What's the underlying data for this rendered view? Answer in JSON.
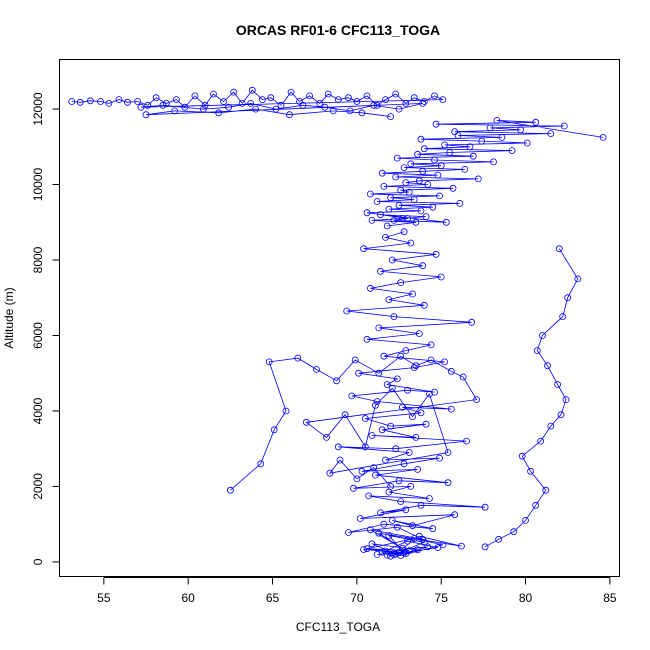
{
  "chart_data": {
    "type": "scatter",
    "title": "ORCAS RF01-6 CFC113_TOGA",
    "xlabel": "CFC113_TOGA",
    "ylabel": "Altitude (m)",
    "xlim": [
      52.4,
      85.6
    ],
    "ylim": [
      -400,
      13300
    ],
    "xticks": [
      55,
      60,
      65,
      70,
      75,
      80,
      85
    ],
    "yticks": [
      0,
      2000,
      4000,
      6000,
      8000,
      10000,
      12000
    ],
    "grid": false,
    "legend": "none",
    "color": "#0000ff",
    "marker": "open-circle",
    "connected": true,
    "series": [
      {
        "x": [
          71.2,
          72.5,
          71.8,
          73.1,
          70.6,
          72.9,
          74.2,
          71.5,
          72.0,
          73.6,
          70.9,
          72.3,
          74.8,
          73.0,
          71.7,
          72.6,
          75.1,
          73.4,
          70.4,
          72.8,
          71.9,
          74.0,
          72.2,
          73.7,
          76.2,
          71.3,
          72.7,
          70.8,
          73.9,
          72.4,
          69.5,
          71.6,
          74.5,
          72.1,
          73.3,
          75.8,
          70.2,
          72.9,
          71.4,
          73.8,
          77.6,
          72.6,
          70.7,
          74.3,
          71.9,
          73.2,
          69.8,
          72.5,
          75.4,
          71.1,
          73.6,
          70.3,
          72.8,
          74.9,
          71.7,
          73.1,
          68.9,
          72.3,
          76.5,
          70.9,
          73.5,
          71.5,
          74.1,
          72.0,
          70.5,
          73.8,
          72.7,
          75.6,
          71.2,
          69.7,
          73.0,
          74.6,
          71.8,
          72.4,
          70.1,
          73.4,
          75.2,
          71.6,
          72.9,
          74.4,
          70.6,
          73.7,
          71.3,
          76.8,
          72.2,
          69.4,
          74.0,
          71.9,
          73.3,
          70.8,
          72.6,
          75.0,
          71.4,
          73.9,
          72.1,
          74.7,
          70.4,
          73.2,
          71.7,
          72.8
        ],
        "y": [
          200,
          250,
          180,
          300,
          350,
          220,
          400,
          260,
          150,
          320,
          480,
          210,
          380,
          550,
          290,
          170,
          450,
          620,
          330,
          240,
          700,
          520,
          190,
          680,
          420,
          760,
          360,
          850,
          600,
          920,
          780,
          1000,
          880,
          1100,
          960,
          1250,
          1150,
          1380,
          1300,
          1500,
          1450,
          1600,
          1750,
          1680,
          1850,
          2000,
          1950,
          2150,
          2100,
          2300,
          2450,
          2400,
          2600,
          2750,
          2700,
          2900,
          3050,
          3000,
          3200,
          3350,
          3300,
          3500,
          3650,
          3600,
          3800,
          3950,
          4100,
          4050,
          4250,
          4400,
          4550,
          4500,
          4700,
          4850,
          5000,
          5150,
          5300,
          5450,
          5600,
          5750,
          5900,
          6050,
          6200,
          6350,
          6500,
          6650,
          6800,
          6950,
          7100,
          7250,
          7400,
          7550,
          7700,
          7850,
          8000,
          8150,
          8300,
          8450,
          8600,
          8750
        ]
      },
      {
        "x": [
          71.8,
          73.5,
          70.9,
          72.7,
          74.1,
          71.4,
          73.0,
          72.2,
          75.3,
          70.6,
          73.8,
          71.9,
          74.5,
          72.5,
          76.1,
          71.2,
          73.4,
          72.0,
          74.9,
          70.8,
          73.1,
          72.6,
          75.7,
          71.6,
          74.2,
          72.9,
          73.7,
          77.2,
          72.3,
          74.8,
          71.5,
          73.9,
          76.4,
          72.8,
          75.0,
          73.2,
          78.1,
          74.6,
          72.4,
          76.9,
          73.6,
          75.5,
          79.2,
          74.0,
          76.7,
          75.2,
          80.1,
          77.4,
          73.8,
          78.6,
          76.0,
          81.5,
          75.8,
          79.7,
          77.9,
          82.3,
          74.7,
          80.6,
          78.3,
          84.6
        ],
        "y": [
          8900,
          9000,
          9050,
          9100,
          9150,
          9200,
          9100,
          9050,
          9000,
          9250,
          9300,
          9350,
          9400,
          9450,
          9500,
          9550,
          9600,
          9650,
          9700,
          9750,
          9800,
          9850,
          9900,
          9950,
          10000,
          10050,
          10100,
          10150,
          10200,
          10250,
          10300,
          10350,
          10400,
          10450,
          10500,
          10550,
          10600,
          10650,
          10700,
          10750,
          10800,
          10850,
          10900,
          10950,
          11000,
          11050,
          11100,
          11150,
          11200,
          11250,
          11300,
          11350,
          11400,
          11450,
          11500,
          11550,
          11600,
          11650,
          11700,
          11250
        ]
      },
      {
        "x": [
          53.1,
          53.6,
          54.2,
          54.8,
          55.3,
          55.9,
          56.4,
          57.0,
          57.6,
          58.1,
          58.7,
          59.3,
          59.8,
          60.4,
          61.0,
          61.5,
          62.1,
          62.7,
          63.2,
          63.8,
          64.4,
          64.9,
          65.5,
          66.1,
          66.6,
          67.2,
          67.8,
          68.3,
          68.9,
          69.5,
          70.0,
          70.6,
          71.2,
          71.7,
          72.3,
          72.9,
          73.4,
          74.0,
          74.6,
          75.1,
          57.2,
          58.5,
          60.9,
          62.4,
          63.7,
          65.2,
          66.8,
          68.1,
          69.6,
          71.0,
          72.5,
          73.9,
          57.5,
          59.2,
          61.8,
          64.0,
          66.0,
          68.6,
          70.3,
          72.0
        ],
        "y": [
          12200,
          12180,
          12220,
          12200,
          12150,
          12250,
          12180,
          12200,
          12100,
          12300,
          12150,
          12250,
          12050,
          12350,
          12100,
          12400,
          12200,
          12450,
          12150,
          12500,
          12250,
          12300,
          12100,
          12450,
          12200,
          12350,
          12150,
          12400,
          12250,
          12300,
          12200,
          12350,
          12100,
          12250,
          12400,
          12150,
          12300,
          12200,
          12350,
          12250,
          12050,
          12100,
          12000,
          12050,
          12150,
          12000,
          12100,
          12050,
          11950,
          12100,
          12000,
          12150,
          11850,
          11950,
          11900,
          12000,
          11850,
          11950,
          11900,
          11800
        ]
      },
      {
        "x": [
          62.5,
          64.3,
          65.1,
          65.8,
          64.8,
          66.5,
          67.6,
          68.8,
          69.9,
          71.3,
          72.6,
          73.5,
          74.4,
          75.6,
          76.3,
          77.1,
          67.0,
          68.2,
          69.3,
          70.5,
          71.1,
          72.1,
          73.3,
          74.3,
          75.4,
          68.4,
          69.0,
          70.0,
          71.0,
          72.0
        ],
        "y": [
          1900,
          2600,
          3500,
          4000,
          5300,
          5400,
          5100,
          4800,
          5350,
          5000,
          5450,
          5200,
          5350,
          5050,
          4900,
          4300,
          3700,
          3300,
          3900,
          3050,
          4150,
          4600,
          3850,
          4450,
          2900,
          2350,
          2700,
          2200,
          2500,
          2000
        ]
      },
      {
        "x": [
          77.6,
          78.4,
          79.3,
          80.0,
          80.6,
          81.2,
          80.3,
          79.8,
          80.9,
          81.5,
          82.1,
          82.4,
          81.9,
          81.3,
          80.7,
          81.0,
          82.2,
          82.5,
          83.1,
          82.0
        ],
        "y": [
          400,
          600,
          800,
          1100,
          1500,
          1900,
          2400,
          2800,
          3200,
          3600,
          3900,
          4300,
          4700,
          5200,
          5600,
          6000,
          6500,
          7000,
          7500,
          8300
        ]
      }
    ]
  }
}
